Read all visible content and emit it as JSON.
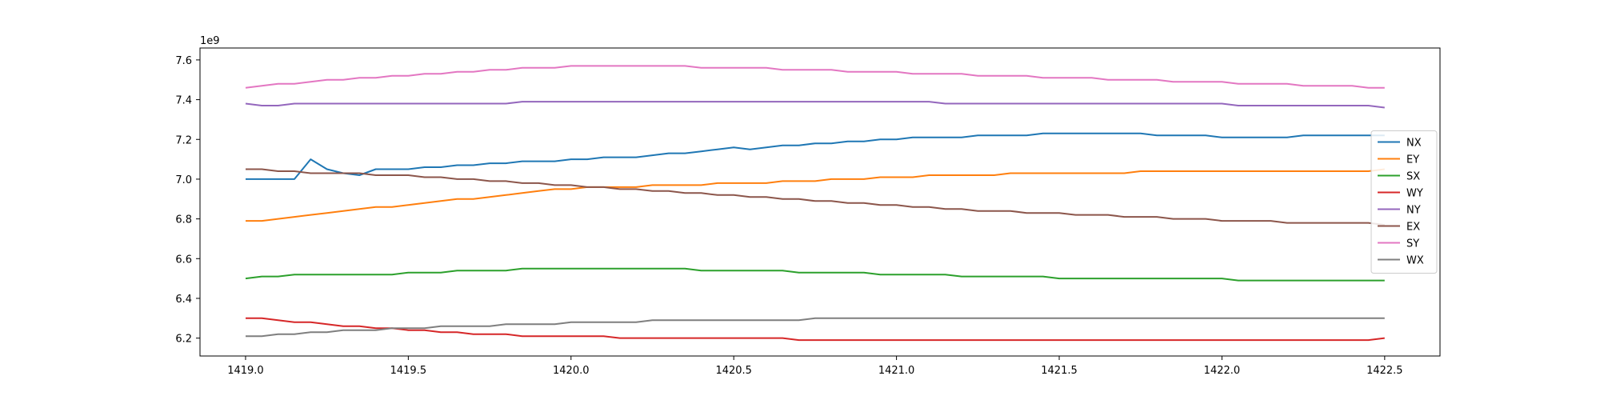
{
  "chart_data": {
    "type": "line",
    "title": "",
    "xlabel": "",
    "ylabel": "",
    "y_offset_label": "1e9",
    "xlim": [
      1418.86,
      1422.67
    ],
    "ylim": [
      6.11,
      7.66
    ],
    "x_ticks": [
      1419.0,
      1419.5,
      1420.0,
      1420.5,
      1421.0,
      1421.5,
      1422.0,
      1422.5
    ],
    "x_tick_labels": [
      "1419.0",
      "1419.5",
      "1420.0",
      "1420.5",
      "1421.0",
      "1421.5",
      "1422.0",
      "1422.5"
    ],
    "y_ticks": [
      6.2,
      6.4,
      6.6,
      6.8,
      7.0,
      7.2,
      7.4,
      7.6
    ],
    "y_tick_labels": [
      "6.2",
      "6.4",
      "6.6",
      "6.8",
      "7.0",
      "7.2",
      "7.4",
      "7.6"
    ],
    "grid": false,
    "legend_position": "center-right",
    "x_start": 1419.0,
    "x_step": 0.05,
    "series": [
      {
        "name": "NX",
        "color": "#1f77b4",
        "values": [
          7.0,
          7.0,
          7.0,
          7.0,
          7.1,
          7.05,
          7.03,
          7.02,
          7.05,
          7.05,
          7.05,
          7.06,
          7.06,
          7.07,
          7.07,
          7.08,
          7.08,
          7.09,
          7.09,
          7.09,
          7.1,
          7.1,
          7.11,
          7.11,
          7.11,
          7.12,
          7.13,
          7.13,
          7.14,
          7.15,
          7.16,
          7.15,
          7.16,
          7.17,
          7.17,
          7.18,
          7.18,
          7.19,
          7.19,
          7.2,
          7.2,
          7.21,
          7.21,
          7.21,
          7.21,
          7.22,
          7.22,
          7.22,
          7.22,
          7.23,
          7.23,
          7.23,
          7.23,
          7.23,
          7.23,
          7.23,
          7.22,
          7.22,
          7.22,
          7.22,
          7.21,
          7.21,
          7.21,
          7.21,
          7.21,
          7.22,
          7.22,
          7.22,
          7.22,
          7.22,
          7.22
        ]
      },
      {
        "name": "EY",
        "color": "#ff7f0e",
        "values": [
          6.79,
          6.79,
          6.8,
          6.81,
          6.82,
          6.83,
          6.84,
          6.85,
          6.86,
          6.86,
          6.87,
          6.88,
          6.89,
          6.9,
          6.9,
          6.91,
          6.92,
          6.93,
          6.94,
          6.95,
          6.95,
          6.96,
          6.96,
          6.96,
          6.96,
          6.97,
          6.97,
          6.97,
          6.97,
          6.98,
          6.98,
          6.98,
          6.98,
          6.99,
          6.99,
          6.99,
          7.0,
          7.0,
          7.0,
          7.01,
          7.01,
          7.01,
          7.02,
          7.02,
          7.02,
          7.02,
          7.02,
          7.03,
          7.03,
          7.03,
          7.03,
          7.03,
          7.03,
          7.03,
          7.03,
          7.04,
          7.04,
          7.04,
          7.04,
          7.04,
          7.04,
          7.04,
          7.04,
          7.04,
          7.04,
          7.04,
          7.04,
          7.04,
          7.04,
          7.04,
          7.05
        ]
      },
      {
        "name": "SX",
        "color": "#2ca02c",
        "values": [
          6.5,
          6.51,
          6.51,
          6.52,
          6.52,
          6.52,
          6.52,
          6.52,
          6.52,
          6.52,
          6.53,
          6.53,
          6.53,
          6.54,
          6.54,
          6.54,
          6.54,
          6.55,
          6.55,
          6.55,
          6.55,
          6.55,
          6.55,
          6.55,
          6.55,
          6.55,
          6.55,
          6.55,
          6.54,
          6.54,
          6.54,
          6.54,
          6.54,
          6.54,
          6.53,
          6.53,
          6.53,
          6.53,
          6.53,
          6.52,
          6.52,
          6.52,
          6.52,
          6.52,
          6.51,
          6.51,
          6.51,
          6.51,
          6.51,
          6.51,
          6.5,
          6.5,
          6.5,
          6.5,
          6.5,
          6.5,
          6.5,
          6.5,
          6.5,
          6.5,
          6.5,
          6.49,
          6.49,
          6.49,
          6.49,
          6.49,
          6.49,
          6.49,
          6.49,
          6.49,
          6.49
        ]
      },
      {
        "name": "WY",
        "color": "#d62728",
        "values": [
          6.3,
          6.3,
          6.29,
          6.28,
          6.28,
          6.27,
          6.26,
          6.26,
          6.25,
          6.25,
          6.24,
          6.24,
          6.23,
          6.23,
          6.22,
          6.22,
          6.22,
          6.21,
          6.21,
          6.21,
          6.21,
          6.21,
          6.21,
          6.2,
          6.2,
          6.2,
          6.2,
          6.2,
          6.2,
          6.2,
          6.2,
          6.2,
          6.2,
          6.2,
          6.19,
          6.19,
          6.19,
          6.19,
          6.19,
          6.19,
          6.19,
          6.19,
          6.19,
          6.19,
          6.19,
          6.19,
          6.19,
          6.19,
          6.19,
          6.19,
          6.19,
          6.19,
          6.19,
          6.19,
          6.19,
          6.19,
          6.19,
          6.19,
          6.19,
          6.19,
          6.19,
          6.19,
          6.19,
          6.19,
          6.19,
          6.19,
          6.19,
          6.19,
          6.19,
          6.19,
          6.2
        ]
      },
      {
        "name": "NY",
        "color": "#9467bd",
        "values": [
          7.38,
          7.37,
          7.37,
          7.38,
          7.38,
          7.38,
          7.38,
          7.38,
          7.38,
          7.38,
          7.38,
          7.38,
          7.38,
          7.38,
          7.38,
          7.38,
          7.38,
          7.39,
          7.39,
          7.39,
          7.39,
          7.39,
          7.39,
          7.39,
          7.39,
          7.39,
          7.39,
          7.39,
          7.39,
          7.39,
          7.39,
          7.39,
          7.39,
          7.39,
          7.39,
          7.39,
          7.39,
          7.39,
          7.39,
          7.39,
          7.39,
          7.39,
          7.39,
          7.38,
          7.38,
          7.38,
          7.38,
          7.38,
          7.38,
          7.38,
          7.38,
          7.38,
          7.38,
          7.38,
          7.38,
          7.38,
          7.38,
          7.38,
          7.38,
          7.38,
          7.38,
          7.37,
          7.37,
          7.37,
          7.37,
          7.37,
          7.37,
          7.37,
          7.37,
          7.37,
          7.36
        ]
      },
      {
        "name": "EX",
        "color": "#8c564b",
        "values": [
          7.05,
          7.05,
          7.04,
          7.04,
          7.03,
          7.03,
          7.03,
          7.03,
          7.02,
          7.02,
          7.02,
          7.01,
          7.01,
          7.0,
          7.0,
          6.99,
          6.99,
          6.98,
          6.98,
          6.97,
          6.97,
          6.96,
          6.96,
          6.95,
          6.95,
          6.94,
          6.94,
          6.93,
          6.93,
          6.92,
          6.92,
          6.91,
          6.91,
          6.9,
          6.9,
          6.89,
          6.89,
          6.88,
          6.88,
          6.87,
          6.87,
          6.86,
          6.86,
          6.85,
          6.85,
          6.84,
          6.84,
          6.84,
          6.83,
          6.83,
          6.83,
          6.82,
          6.82,
          6.82,
          6.81,
          6.81,
          6.81,
          6.8,
          6.8,
          6.8,
          6.79,
          6.79,
          6.79,
          6.79,
          6.78,
          6.78,
          6.78,
          6.78,
          6.78,
          6.78,
          6.77
        ]
      },
      {
        "name": "SY",
        "color": "#e377c2",
        "values": [
          7.46,
          7.47,
          7.48,
          7.48,
          7.49,
          7.5,
          7.5,
          7.51,
          7.51,
          7.52,
          7.52,
          7.53,
          7.53,
          7.54,
          7.54,
          7.55,
          7.55,
          7.56,
          7.56,
          7.56,
          7.57,
          7.57,
          7.57,
          7.57,
          7.57,
          7.57,
          7.57,
          7.57,
          7.56,
          7.56,
          7.56,
          7.56,
          7.56,
          7.55,
          7.55,
          7.55,
          7.55,
          7.54,
          7.54,
          7.54,
          7.54,
          7.53,
          7.53,
          7.53,
          7.53,
          7.52,
          7.52,
          7.52,
          7.52,
          7.51,
          7.51,
          7.51,
          7.51,
          7.5,
          7.5,
          7.5,
          7.5,
          7.49,
          7.49,
          7.49,
          7.49,
          7.48,
          7.48,
          7.48,
          7.48,
          7.47,
          7.47,
          7.47,
          7.47,
          7.46,
          7.46
        ]
      },
      {
        "name": "WX",
        "color": "#7f7f7f",
        "values": [
          6.21,
          6.21,
          6.22,
          6.22,
          6.23,
          6.23,
          6.24,
          6.24,
          6.24,
          6.25,
          6.25,
          6.25,
          6.26,
          6.26,
          6.26,
          6.26,
          6.27,
          6.27,
          6.27,
          6.27,
          6.28,
          6.28,
          6.28,
          6.28,
          6.28,
          6.29,
          6.29,
          6.29,
          6.29,
          6.29,
          6.29,
          6.29,
          6.29,
          6.29,
          6.29,
          6.3,
          6.3,
          6.3,
          6.3,
          6.3,
          6.3,
          6.3,
          6.3,
          6.3,
          6.3,
          6.3,
          6.3,
          6.3,
          6.3,
          6.3,
          6.3,
          6.3,
          6.3,
          6.3,
          6.3,
          6.3,
          6.3,
          6.3,
          6.3,
          6.3,
          6.3,
          6.3,
          6.3,
          6.3,
          6.3,
          6.3,
          6.3,
          6.3,
          6.3,
          6.3,
          6.3
        ]
      }
    ]
  }
}
